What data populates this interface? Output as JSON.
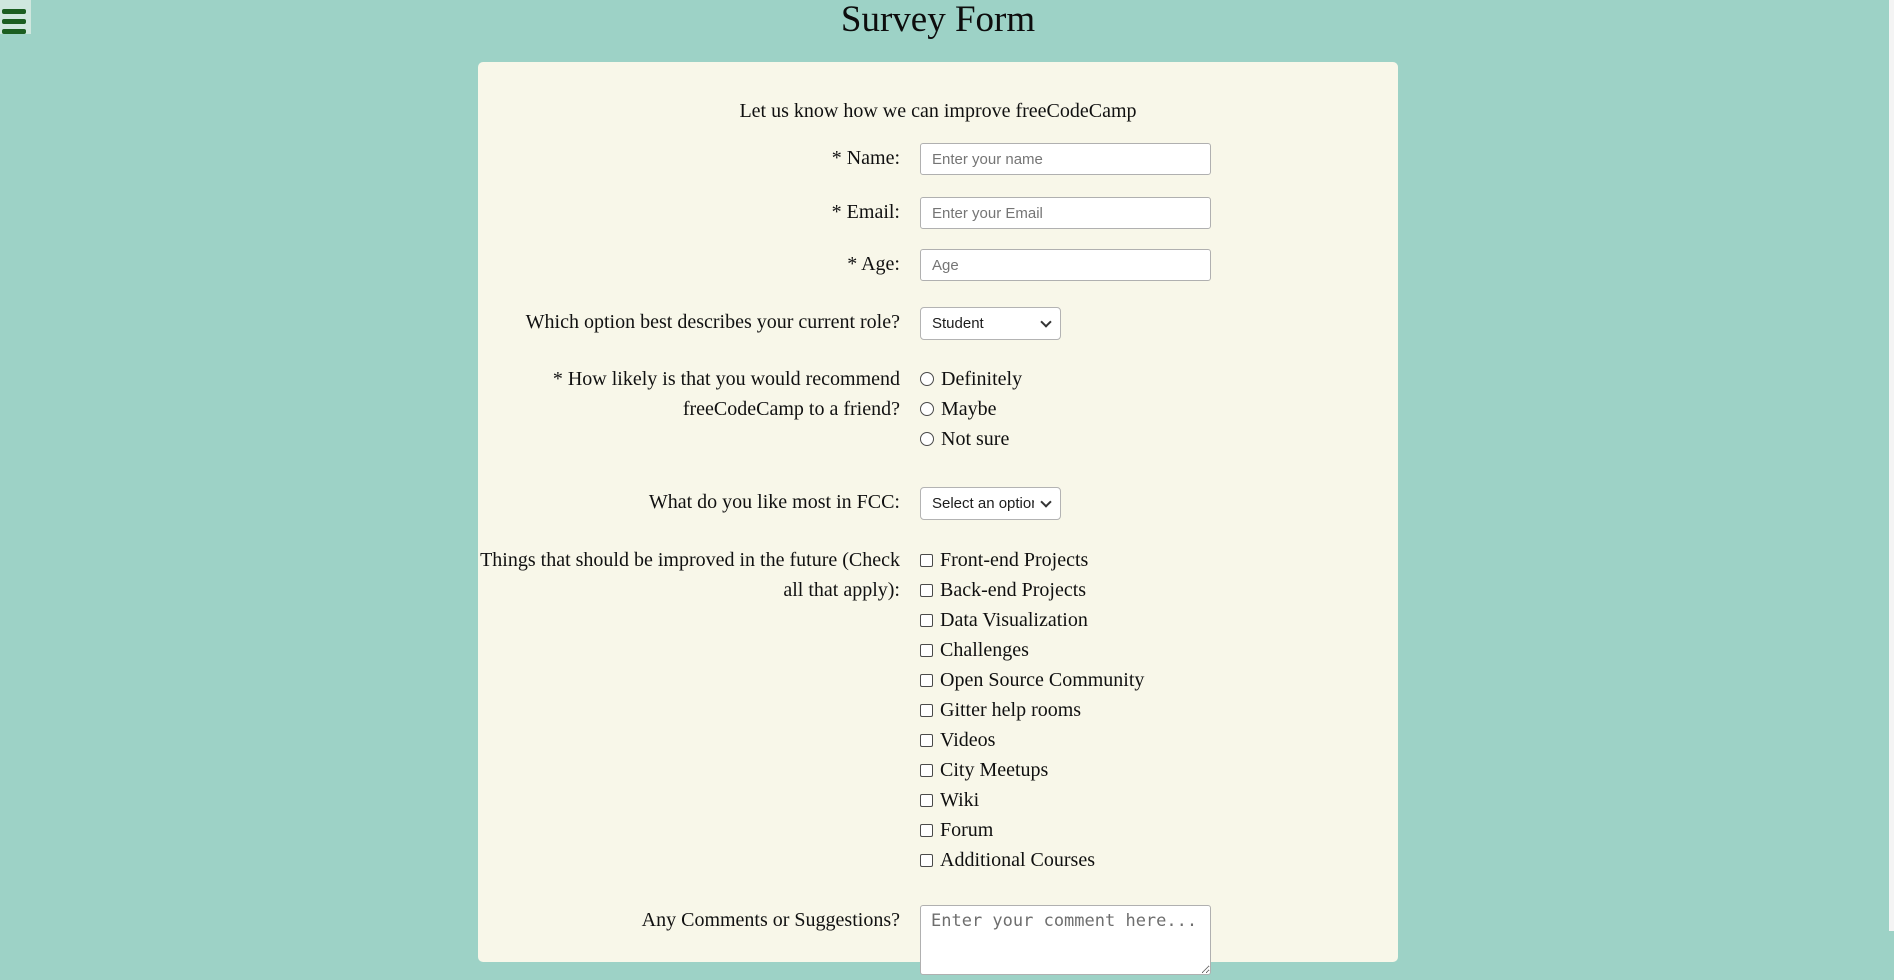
{
  "colors": {
    "page_bg": "#9dd2c6",
    "card_bg": "#f8f7e9",
    "menu_bg": "#cfe7de",
    "menu_bars": "#1b5e20"
  },
  "header": {
    "title": "Survey Form"
  },
  "form": {
    "description": "Let us know how we can improve freeCodeCamp",
    "name": {
      "label": "* Name:",
      "placeholder": "Enter your name",
      "value": ""
    },
    "email": {
      "label": "* Email:",
      "placeholder": "Enter your Email",
      "value": ""
    },
    "age": {
      "label": "* Age:",
      "placeholder": "Age",
      "value": ""
    },
    "role": {
      "label": "Which option best describes your current role?",
      "selected": "Student"
    },
    "recommend": {
      "label": "* How likely is that you would recommend freeCodeCamp to a friend?",
      "options": [
        "Definitely",
        "Maybe",
        "Not sure"
      ]
    },
    "favorite": {
      "label": "What do you like most in FCC:",
      "selected": "Select an option"
    },
    "improvements": {
      "label": "Things that should be improved in the future (Check all that apply):",
      "options": [
        "Front-end Projects",
        "Back-end Projects",
        "Data Visualization",
        "Challenges",
        "Open Source Community",
        "Gitter help rooms",
        "Videos",
        "City Meetups",
        "Wiki",
        "Forum",
        "Additional Courses"
      ]
    },
    "comments": {
      "label": "Any Comments or Suggestions?",
      "placeholder": "Enter your comment here...",
      "value": ""
    }
  }
}
